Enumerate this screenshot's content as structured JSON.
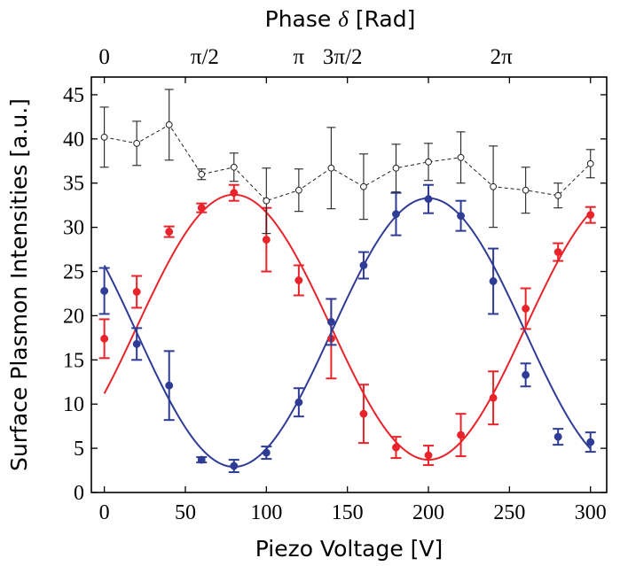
{
  "chart_data": {
    "type": "scatter",
    "xlabel": "Piezo Voltage [V]",
    "ylabel": "Surface Plasmon Intensities [a.u.]",
    "top_axis_title": "Phase",
    "top_axis_symbol": "δ",
    "top_axis_unit": "[Rad]",
    "xlim": [
      -8,
      310
    ],
    "ylim": [
      0,
      47
    ],
    "x_ticks": [
      0,
      50,
      100,
      150,
      200,
      250,
      300
    ],
    "x_tick_labels": [
      "0",
      "50",
      "100",
      "150",
      "200",
      "250",
      "300"
    ],
    "y_ticks": [
      0,
      5,
      10,
      15,
      20,
      25,
      30,
      35,
      40,
      45
    ],
    "y_tick_labels": [
      "0",
      "5",
      "10",
      "15",
      "20",
      "25",
      "30",
      "35",
      "40",
      "45"
    ],
    "top_ticks": [
      {
        "x": 0,
        "label": "0"
      },
      {
        "x": 62,
        "label": "π/2"
      },
      {
        "x": 120,
        "label": "π"
      },
      {
        "x": 147,
        "label": "3π/2"
      },
      {
        "x": 245,
        "label": "2π"
      }
    ],
    "series": [
      {
        "color": "#e8232a",
        "marker": "filled-circle",
        "x": [
          0,
          20,
          40,
          60,
          80,
          100,
          120,
          140,
          160,
          180,
          200,
          220,
          240,
          260,
          280,
          300
        ],
        "y": [
          17.4,
          22.7,
          29.5,
          32.2,
          33.9,
          28.6,
          24.0,
          17.4,
          8.9,
          5.1,
          4.2,
          6.5,
          10.7,
          20.8,
          27.2,
          31.4
        ],
        "err": [
          2.2,
          1.8,
          0.6,
          0.5,
          0.9,
          3.6,
          1.7,
          4.5,
          3.3,
          1.2,
          1.1,
          2.4,
          3.0,
          2.3,
          1.0,
          0.9
        ],
        "fit": {
          "offset": 18.7,
          "amplitude": 15.0,
          "period": 240,
          "x_peak": 80
        }
      },
      {
        "color": "#2e3c96",
        "marker": "filled-circle",
        "x": [
          0,
          20,
          40,
          60,
          80,
          100,
          120,
          140,
          160,
          180,
          200,
          220,
          240,
          260,
          280,
          300
        ],
        "y": [
          22.8,
          16.8,
          12.1,
          3.7,
          3.0,
          4.5,
          10.2,
          19.3,
          25.7,
          31.5,
          33.2,
          31.3,
          23.9,
          13.3,
          6.3,
          5.7
        ],
        "err": [
          2.6,
          1.8,
          3.9,
          0.3,
          0.7,
          0.7,
          1.6,
          2.6,
          1.5,
          2.4,
          1.6,
          1.7,
          3.7,
          1.3,
          0.9,
          1.1
        ],
        "fit": {
          "offset": 18.1,
          "amplitude": 15.2,
          "period": 240,
          "x_peak": 200
        }
      },
      {
        "color": "#222222",
        "marker": "open-circle",
        "line": "dashed",
        "x": [
          0,
          20,
          40,
          60,
          80,
          100,
          120,
          140,
          160,
          180,
          200,
          220,
          240,
          260,
          280,
          300
        ],
        "y": [
          40.2,
          39.5,
          41.6,
          36.0,
          36.8,
          33.0,
          34.2,
          36.7,
          34.6,
          36.7,
          37.4,
          37.9,
          34.6,
          34.2,
          33.6,
          37.2
        ],
        "err": [
          3.4,
          2.5,
          4.0,
          0.6,
          1.6,
          3.7,
          2.4,
          4.6,
          3.7,
          2.7,
          2.1,
          2.9,
          4.6,
          2.6,
          1.4,
          1.6
        ]
      }
    ]
  }
}
